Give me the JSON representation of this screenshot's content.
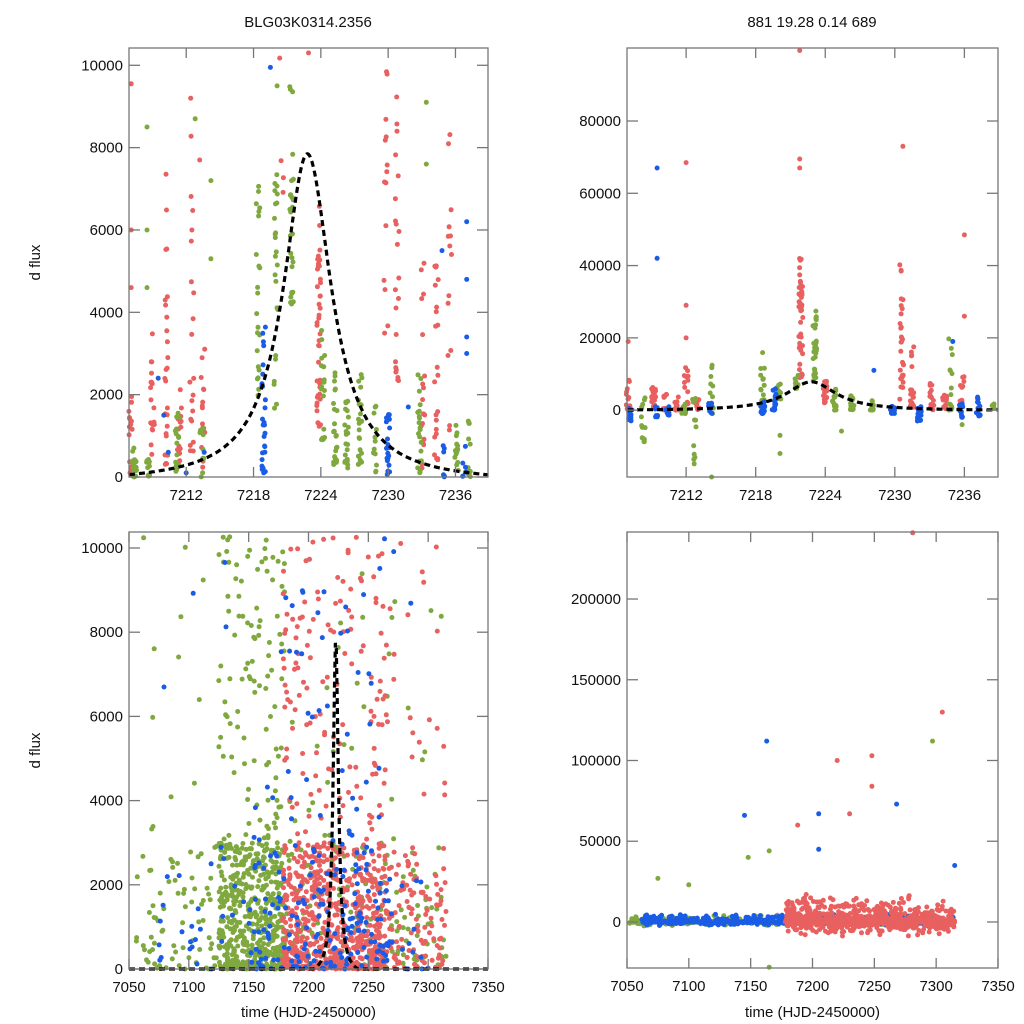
{
  "figure": {
    "title_left": "BLG03K0314.2356",
    "title_right": "881  19.28  0.14  689"
  },
  "colors": {
    "series_red": "#e8605f",
    "series_green": "#7fa83f",
    "series_blue": "#1a5ce6",
    "fit": "#000000"
  },
  "chart_data": [
    {
      "id": "top-left",
      "type": "scatter",
      "title": "BLG03K0314.2356",
      "xlabel": "",
      "ylabel": "d flux",
      "xlim": [
        7206.9,
        7238.9
      ],
      "ylim": [
        0,
        10420
      ],
      "xticks": [
        7212,
        7218,
        7224,
        7230,
        7236
      ],
      "xtick_labels": [
        "7212",
        "7218",
        "7224",
        "7230",
        "7236"
      ],
      "yticks": [
        0,
        2000,
        4000,
        6000,
        8000,
        10000
      ],
      "ytick_labels": [
        "0",
        "2000",
        "4000",
        "6000",
        "8000",
        "10000"
      ],
      "fit": {
        "model": "microlensing",
        "t0": 7222.8,
        "peak": 8000,
        "tE": 2.6
      },
      "series": [
        {
          "name": "red",
          "clusters": [
            {
              "x": 7207.0,
              "ymin": 0,
              "ymax": 2200,
              "n": 14
            },
            {
              "x": 7209.0,
              "ymin": 300,
              "ymax": 3600,
              "n": 18
            },
            {
              "x": 7210.2,
              "ymin": 300,
              "ymax": 7400,
              "n": 26
            },
            {
              "x": 7211.4,
              "ymin": 300,
              "ymax": 2200,
              "n": 16
            },
            {
              "x": 7212.5,
              "ymin": 300,
              "ymax": 9200,
              "n": 20
            },
            {
              "x": 7213.5,
              "ymin": 200,
              "ymax": 3400,
              "n": 14
            },
            {
              "x": 7220.5,
              "ymin": 6600,
              "ymax": 10300,
              "n": 4
            },
            {
              "x": 7223.8,
              "ymin": 1200,
              "ymax": 6800,
              "n": 40
            },
            {
              "x": 7229.8,
              "ymin": 3400,
              "ymax": 10000,
              "n": 14
            },
            {
              "x": 7230.8,
              "ymin": 2300,
              "ymax": 9300,
              "n": 22
            },
            {
              "x": 7233.1,
              "ymin": 200,
              "ymax": 5800,
              "n": 20
            },
            {
              "x": 7234.3,
              "ymin": 100,
              "ymax": 5400,
              "n": 22
            },
            {
              "x": 7235.5,
              "ymin": 200,
              "ymax": 8800,
              "n": 14
            }
          ],
          "points": [
            [
              7207.1,
              9550
            ],
            [
              7207.1,
              6000
            ],
            [
              7207.1,
              4600
            ],
            [
              7212.4,
              9200
            ],
            [
              7213.2,
              7700
            ],
            [
              7222.9,
              10300
            ]
          ]
        },
        {
          "name": "green",
          "clusters": [
            {
              "x": 7207.4,
              "ymin": 0,
              "ymax": 800,
              "n": 20
            },
            {
              "x": 7208.6,
              "ymin": 0,
              "ymax": 500,
              "n": 10
            },
            {
              "x": 7211.2,
              "ymin": 0,
              "ymax": 1700,
              "n": 16
            },
            {
              "x": 7213.4,
              "ymin": 0,
              "ymax": 1200,
              "n": 10
            },
            {
              "x": 7218.4,
              "ymin": 1800,
              "ymax": 7200,
              "n": 22
            },
            {
              "x": 7220.0,
              "ymin": 1500,
              "ymax": 7600,
              "n": 24
            },
            {
              "x": 7221.4,
              "ymin": 4200,
              "ymax": 10400,
              "n": 26
            },
            {
              "x": 7224.2,
              "ymin": 900,
              "ymax": 4000,
              "n": 18
            },
            {
              "x": 7225.3,
              "ymin": 300,
              "ymax": 2600,
              "n": 24
            },
            {
              "x": 7226.3,
              "ymin": 200,
              "ymax": 2000,
              "n": 22
            },
            {
              "x": 7227.5,
              "ymin": 300,
              "ymax": 2500,
              "n": 22
            },
            {
              "x": 7228.8,
              "ymin": 100,
              "ymax": 1800,
              "n": 12
            },
            {
              "x": 7232.8,
              "ymin": 100,
              "ymax": 2700,
              "n": 22
            },
            {
              "x": 7236.1,
              "ymin": 0,
              "ymax": 1400,
              "n": 14
            },
            {
              "x": 7237.2,
              "ymin": 0,
              "ymax": 1500,
              "n": 12
            }
          ],
          "points": [
            [
              7208.5,
              8500
            ],
            [
              7208.5,
              6000
            ],
            [
              7208.5,
              4600
            ],
            [
              7212.8,
              8700
            ],
            [
              7214.2,
              7200
            ],
            [
              7214.2,
              5300
            ],
            [
              7220.1,
              9500
            ],
            [
              7233.4,
              9100
            ],
            [
              7233.4,
              7600
            ]
          ]
        },
        {
          "name": "blue",
          "clusters": [
            {
              "x": 7218.9,
              "ymin": 100,
              "ymax": 3800,
              "n": 28
            },
            {
              "x": 7230.0,
              "ymin": 0,
              "ymax": 1600,
              "n": 20
            },
            {
              "x": 7235.0,
              "ymin": 0,
              "ymax": 800,
              "n": 6
            },
            {
              "x": 7236.8,
              "ymin": 0,
              "ymax": 800,
              "n": 6
            }
          ],
          "points": [
            [
              7209.5,
              2400
            ],
            [
              7210.0,
              1500
            ],
            [
              7210.4,
              600
            ],
            [
              7212.0,
              100
            ],
            [
              7213.6,
              600
            ],
            [
              7219.5,
              9950
            ],
            [
              7231.8,
              1700
            ],
            [
              7234.8,
              5500
            ],
            [
              7237.0,
              6200
            ],
            [
              7237.0,
              4800
            ],
            [
              7237.0,
              3400
            ],
            [
              7237.0,
              3000
            ]
          ]
        }
      ]
    },
    {
      "id": "top-right",
      "type": "scatter",
      "title": "881  19.28  0.14  689",
      "xlabel": "",
      "ylabel": "",
      "xlim": [
        7206.9,
        7238.9
      ],
      "ylim": [
        -18500,
        100200
      ],
      "xticks": [
        7212,
        7218,
        7224,
        7230,
        7236
      ],
      "xtick_labels": [
        "7212",
        "7218",
        "7224",
        "7230",
        "7236"
      ],
      "yticks": [
        0,
        20000,
        40000,
        60000,
        80000
      ],
      "ytick_labels": [
        "0",
        "20000",
        "40000",
        "60000",
        "80000"
      ],
      "fit": {
        "model": "microlensing",
        "t0": 7222.8,
        "peak": 8000,
        "tE": 2.6
      },
      "series": [
        {
          "name": "red",
          "clusters": [
            {
              "x": 7207.0,
              "ymin": -500,
              "ymax": 9000,
              "n": 16
            },
            {
              "x": 7209.2,
              "ymin": 0,
              "ymax": 7000,
              "n": 18
            },
            {
              "x": 7210.2,
              "ymin": 0,
              "ymax": 5000,
              "n": 14
            },
            {
              "x": 7211.2,
              "ymin": 0,
              "ymax": 4000,
              "n": 14
            },
            {
              "x": 7212.0,
              "ymin": 0,
              "ymax": 12000,
              "n": 14
            },
            {
              "x": 7213.0,
              "ymin": 0,
              "ymax": 3000,
              "n": 8
            },
            {
              "x": 7221.9,
              "ymin": 8000,
              "ymax": 42000,
              "n": 44
            },
            {
              "x": 7224.0,
              "ymin": 2000,
              "ymax": 8000,
              "n": 20
            },
            {
              "x": 7230.6,
              "ymin": 3000,
              "ymax": 41000,
              "n": 30
            },
            {
              "x": 7231.5,
              "ymin": 0,
              "ymax": 18000,
              "n": 20
            },
            {
              "x": 7233.2,
              "ymin": 0,
              "ymax": 8000,
              "n": 14
            },
            {
              "x": 7234.3,
              "ymin": 0,
              "ymax": 5000,
              "n": 10
            },
            {
              "x": 7235.8,
              "ymin": 0,
              "ymax": 12000,
              "n": 10
            }
          ],
          "points": [
            [
              7207.0,
              19000
            ],
            [
              7212.0,
              68500
            ],
            [
              7212.0,
              29000
            ],
            [
              7212.0,
              20000
            ],
            [
              7221.8,
              99500
            ],
            [
              7221.8,
              69500
            ],
            [
              7221.8,
              67000
            ],
            [
              7230.7,
              73000
            ],
            [
              7236.0,
              48500
            ],
            [
              7236.0,
              26000
            ]
          ]
        },
        {
          "name": "green",
          "clusters": [
            {
              "x": 7208.3,
              "ymin": -9000,
              "ymax": 4000,
              "n": 14
            },
            {
              "x": 7211.8,
              "ymin": -1000,
              "ymax": 2000,
              "n": 12
            },
            {
              "x": 7212.7,
              "ymin": -15000,
              "ymax": 4000,
              "n": 12
            },
            {
              "x": 7214.2,
              "ymin": -2000,
              "ymax": 13000,
              "n": 12
            },
            {
              "x": 7218.6,
              "ymin": 2000,
              "ymax": 17000,
              "n": 12
            },
            {
              "x": 7220.0,
              "ymin": 3000,
              "ymax": 8000,
              "n": 14
            },
            {
              "x": 7221.5,
              "ymin": 6000,
              "ymax": 10000,
              "n": 12
            },
            {
              "x": 7223.1,
              "ymin": 8000,
              "ymax": 28000,
              "n": 30
            },
            {
              "x": 7224.8,
              "ymin": 0,
              "ymax": 6000,
              "n": 16
            },
            {
              "x": 7226.3,
              "ymin": 0,
              "ymax": 4000,
              "n": 16
            },
            {
              "x": 7228.0,
              "ymin": 0,
              "ymax": 3000,
              "n": 10
            },
            {
              "x": 7234.8,
              "ymin": 0,
              "ymax": 20000,
              "n": 14
            },
            {
              "x": 7238.5,
              "ymin": 0,
              "ymax": 2000,
              "n": 6
            }
          ],
          "points": [
            [
              7214.2,
              -18500
            ],
            [
              7220.1,
              -7000
            ],
            [
              7220.1,
              -12000
            ],
            [
              7225.4,
              -5800
            ],
            [
              7235.8,
              -4000
            ]
          ]
        },
        {
          "name": "blue",
          "clusters": [
            {
              "x": 7207.2,
              "ymin": -3000,
              "ymax": 1000,
              "n": 14
            },
            {
              "x": 7209.5,
              "ymin": -2000,
              "ymax": 1500,
              "n": 8
            },
            {
              "x": 7210.4,
              "ymin": -1500,
              "ymax": 1000,
              "n": 8
            },
            {
              "x": 7214.1,
              "ymin": -1000,
              "ymax": 2000,
              "n": 8
            },
            {
              "x": 7218.6,
              "ymin": -1000,
              "ymax": 4000,
              "n": 16
            },
            {
              "x": 7219.6,
              "ymin": 0,
              "ymax": 6000,
              "n": 20
            },
            {
              "x": 7229.8,
              "ymin": -1000,
              "ymax": 1500,
              "n": 12
            },
            {
              "x": 7232.1,
              "ymin": -3000,
              "ymax": 1500,
              "n": 16
            },
            {
              "x": 7235.7,
              "ymin": -2000,
              "ymax": 2000,
              "n": 12
            },
            {
              "x": 7237.2,
              "ymin": -2000,
              "ymax": 4000,
              "n": 16
            }
          ],
          "points": [
            [
              7209.5,
              67000
            ],
            [
              7209.5,
              42000
            ],
            [
              7228.2,
              11000
            ],
            [
              7235.0,
              19000
            ]
          ]
        }
      ]
    },
    {
      "id": "bottom-left",
      "type": "scatter",
      "title": "",
      "xlabel": "time (HJD-2450000)",
      "ylabel": "d flux",
      "xlim": [
        7050,
        7350
      ],
      "ylim": [
        0,
        10380
      ],
      "xticks": [
        7050,
        7100,
        7150,
        7200,
        7250,
        7300,
        7350
      ],
      "xtick_labels": [
        "7050",
        "7100",
        "7150",
        "7200",
        "7250",
        "7300",
        "7350"
      ],
      "yticks": [
        0,
        2000,
        4000,
        6000,
        8000,
        10000
      ],
      "ytick_labels": [
        "0",
        "2000",
        "4000",
        "6000",
        "8000",
        "10000"
      ],
      "fit": {
        "model": "microlensing",
        "t0": 7222.8,
        "peak": 8000,
        "tE": 2.6
      },
      "series": [
        {
          "name": "green",
          "band": {
            "x0": 7055,
            "x1": 7315,
            "dense_x0": 7125,
            "dense_x1": 7180,
            "n": 900
          }
        },
        {
          "name": "red",
          "band": {
            "x0": 7178,
            "x1": 7315,
            "dense_x0": 7178,
            "dense_x1": 7265,
            "n": 900
          }
        },
        {
          "name": "blue",
          "band": {
            "x0": 7075,
            "x1": 7310,
            "dense_x0": 7150,
            "dense_x1": 7270,
            "n": 260
          }
        }
      ]
    },
    {
      "id": "bottom-right",
      "type": "scatter",
      "title": "",
      "xlabel": "time (HJD-2450000)",
      "ylabel": "",
      "xlim": [
        7050,
        7350
      ],
      "ylim": [
        -28500,
        241500
      ],
      "xticks": [
        7050,
        7100,
        7150,
        7200,
        7250,
        7300,
        7350
      ],
      "xtick_labels": [
        "7050",
        "7100",
        "7150",
        "7200",
        "7250",
        "7300",
        "7350"
      ],
      "yticks": [
        0,
        50000,
        100000,
        150000,
        200000
      ],
      "ytick_labels": [
        "0",
        "50000",
        "100000",
        "150000",
        "200000"
      ],
      "series": [
        {
          "name": "green",
          "band": {
            "x0": 7052,
            "x1": 7315,
            "n": 500
          },
          "points": [
            [
              7075,
              27000
            ],
            [
              7100,
              23000
            ],
            [
              7148,
              40000
            ],
            [
              7165,
              44000
            ],
            [
              7165,
              -28000
            ],
            [
              7297,
              112000
            ]
          ]
        },
        {
          "name": "blue",
          "band": {
            "x0": 7062,
            "x1": 7315,
            "n": 700
          },
          "points": [
            [
              7163,
              112000
            ],
            [
              7145,
              66000
            ],
            [
              7205,
              67000
            ],
            [
              7205,
              45000
            ],
            [
              7268,
              73000
            ],
            [
              7315,
              35000
            ]
          ]
        },
        {
          "name": "red",
          "band": {
            "x0": 7178,
            "x1": 7315,
            "n": 900
          },
          "points": [
            [
              7220,
              100000
            ],
            [
              7248,
              103000
            ],
            [
              7248,
              84000
            ],
            [
              7281,
              241000
            ],
            [
              7305,
              130000
            ],
            [
              7230,
              67000
            ],
            [
              7188,
              60000
            ]
          ]
        }
      ]
    }
  ]
}
